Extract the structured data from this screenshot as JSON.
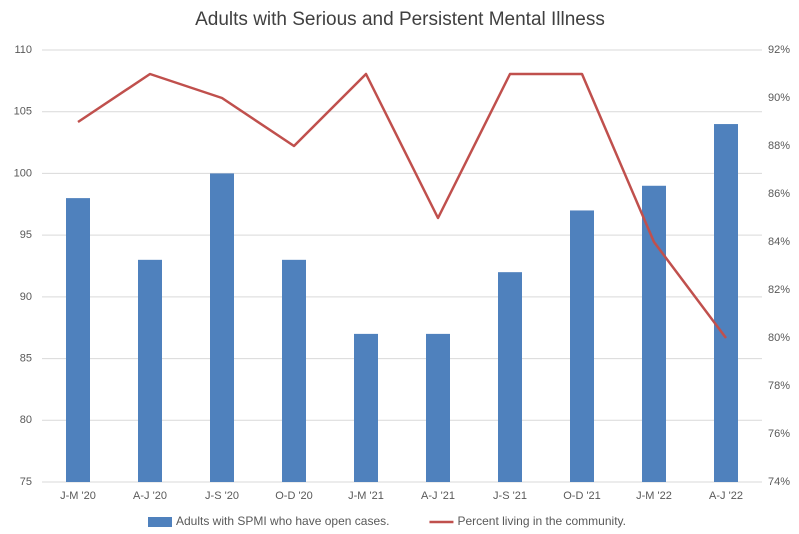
{
  "chart_data": {
    "type": "bar",
    "title": "Adults with Serious and Persistent Mental Illness",
    "categories": [
      "J-M '20",
      "A-J '20",
      "J-S '20",
      "O-D '20",
      "J-M '21",
      "A-J '21",
      "J-S '21",
      "O-D '21",
      "J-M '22",
      "A-J '22"
    ],
    "series": [
      {
        "name": "Adults with SPMI who have open cases.",
        "color": "#4f81bd",
        "type": "bar",
        "values": [
          98,
          93,
          100,
          93,
          87,
          87,
          92,
          97,
          99,
          104
        ]
      },
      {
        "name": "Percent living in the community.",
        "color": "#c0504d",
        "type": "line",
        "axis": "y2",
        "values": [
          89,
          91,
          90,
          88,
          91,
          85,
          91,
          91,
          84,
          80
        ]
      }
    ],
    "ylim": [
      75,
      110
    ],
    "yticks": [
      75,
      80,
      85,
      90,
      95,
      100,
      105,
      110
    ],
    "y2lim": [
      74,
      92
    ],
    "y2ticks": [
      {
        "value": 74,
        "label": "74%"
      },
      {
        "value": 76,
        "label": "76%"
      },
      {
        "value": 78,
        "label": "78%"
      },
      {
        "value": 80,
        "label": "80%"
      },
      {
        "value": 82,
        "label": "82%"
      },
      {
        "value": 84,
        "label": "84%"
      },
      {
        "value": 86,
        "label": "86%"
      },
      {
        "value": 88,
        "label": "88%"
      },
      {
        "value": 90,
        "label": "90%"
      },
      {
        "value": 92,
        "label": "92%"
      }
    ],
    "grid": true,
    "legend": "bottom"
  }
}
